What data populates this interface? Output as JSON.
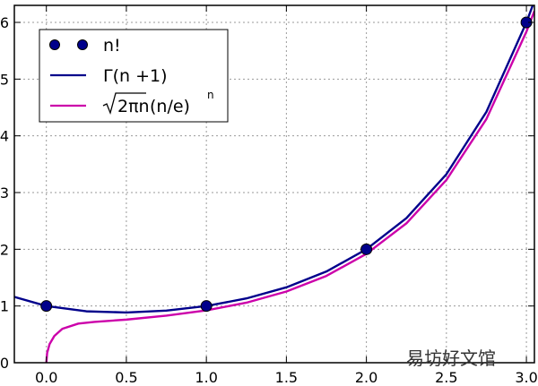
{
  "chart_data": {
    "type": "line",
    "title": "",
    "xlabel": "",
    "ylabel": "",
    "xlim": [
      -0.2,
      3.05
    ],
    "ylim": [
      0,
      6.3
    ],
    "x_ticks": [
      "0.0",
      "0.5",
      "1.0",
      "1.5",
      "2.0",
      "2.5",
      "3.0"
    ],
    "y_ticks": [
      "0",
      "1",
      "2",
      "3",
      "4",
      "5",
      "6"
    ],
    "grid": true,
    "legend_position": "top-left",
    "series": [
      {
        "name": "n!",
        "kind": "scatter",
        "color": "#00008b",
        "x": [
          0,
          1,
          2,
          3
        ],
        "y": [
          1,
          1,
          2,
          6
        ]
      },
      {
        "name": "Γ(n +1)",
        "kind": "line",
        "color": "#00008b",
        "x": [
          -0.2,
          0.0,
          0.25,
          0.5,
          0.75,
          1.0,
          1.25,
          1.5,
          1.75,
          2.0,
          2.25,
          2.5,
          2.75,
          3.0,
          3.05
        ],
        "y": [
          1.16,
          1.0,
          0.906,
          0.886,
          0.919,
          1.0,
          1.133,
          1.329,
          1.608,
          2.0,
          2.549,
          3.323,
          4.423,
          6.0,
          6.38
        ]
      },
      {
        "name": "√2πn (n/e)ⁿ",
        "kind": "line",
        "color": "#cc00aa",
        "x": [
          0.0,
          0.005,
          0.02,
          0.05,
          0.1,
          0.2,
          0.3,
          0.5,
          0.75,
          1.0,
          1.25,
          1.5,
          1.75,
          2.0,
          2.25,
          2.5,
          2.75,
          3.0,
          3.05
        ],
        "y": [
          0.0,
          0.172,
          0.327,
          0.472,
          0.598,
          0.69,
          0.72,
          0.76,
          0.83,
          0.922,
          1.058,
          1.255,
          1.53,
          1.919,
          2.457,
          3.222,
          4.296,
          5.836,
          6.2
        ]
      }
    ]
  },
  "legend": {
    "items": [
      {
        "label": "n!"
      },
      {
        "label": "Γ(n +1)"
      },
      {
        "label_root": "2πn",
        "label_paren": "(n/e)",
        "label_sup": "n"
      }
    ]
  },
  "watermark": "易坊好文馆"
}
